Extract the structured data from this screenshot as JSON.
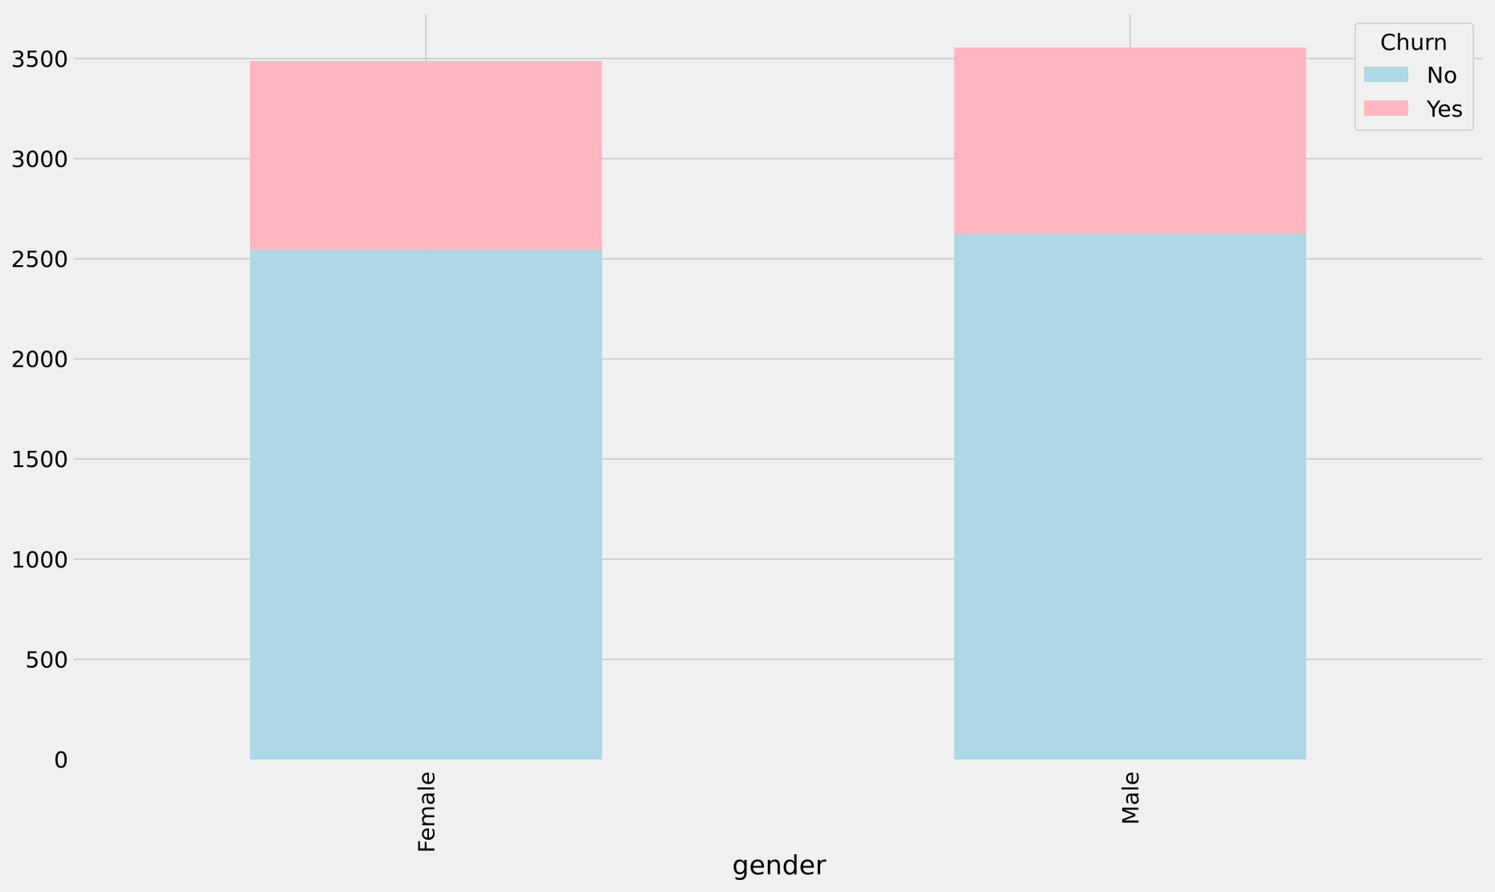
{
  "chart_data": {
    "type": "bar",
    "stacked": true,
    "categories": [
      "Female",
      "Male"
    ],
    "series": [
      {
        "name": "No",
        "values": [
          2549,
          2625
        ],
        "color": "#add8e6"
      },
      {
        "name": "Yes",
        "values": [
          939,
          930
        ],
        "color": "#ffb6c1"
      }
    ],
    "xlabel": "gender",
    "ylabel": "",
    "ylim": [
      0,
      3720
    ],
    "yticks": [
      0,
      500,
      1000,
      1500,
      2000,
      2500,
      3000,
      3500
    ],
    "ytick_labels": [
      "0",
      "500",
      "1000",
      "1500",
      "2000",
      "2500",
      "3000",
      "3500"
    ],
    "x_tick_rotation": "vertical",
    "grid": true,
    "legend": {
      "title": "Churn",
      "position": "top-right",
      "entries": [
        "No",
        "Yes"
      ]
    },
    "colors": {
      "background": "#f0f0f0",
      "grid": "#c8c8c8"
    }
  }
}
